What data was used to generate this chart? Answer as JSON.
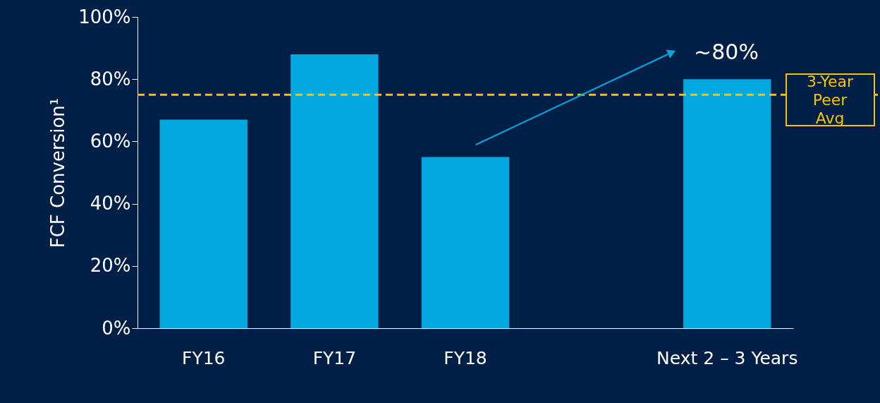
{
  "chart_data": {
    "type": "bar",
    "ylabel": "FCF Conversion¹",
    "categories": [
      "FY16",
      "FY17",
      "FY18",
      null,
      "Next 2 – 3 Years"
    ],
    "values": [
      67,
      88,
      55,
      null,
      80
    ],
    "color": "#00a8e0",
    "ylim": [
      0,
      100
    ],
    "yticks": [
      {
        "value": 0,
        "label": "0%"
      },
      {
        "value": 20,
        "label": "20%"
      },
      {
        "value": 40,
        "label": "40%"
      },
      {
        "value": 60,
        "label": "60%"
      },
      {
        "value": 80,
        "label": "80%"
      },
      {
        "value": 100,
        "label": "100%"
      }
    ],
    "ref_lines": [
      {
        "axis": "y",
        "value": 75,
        "label": "3-Year Peer Avg",
        "color": "#f5c400",
        "line_style": "dashed"
      }
    ],
    "annotations": [
      "~80%"
    ],
    "grid": false
  }
}
